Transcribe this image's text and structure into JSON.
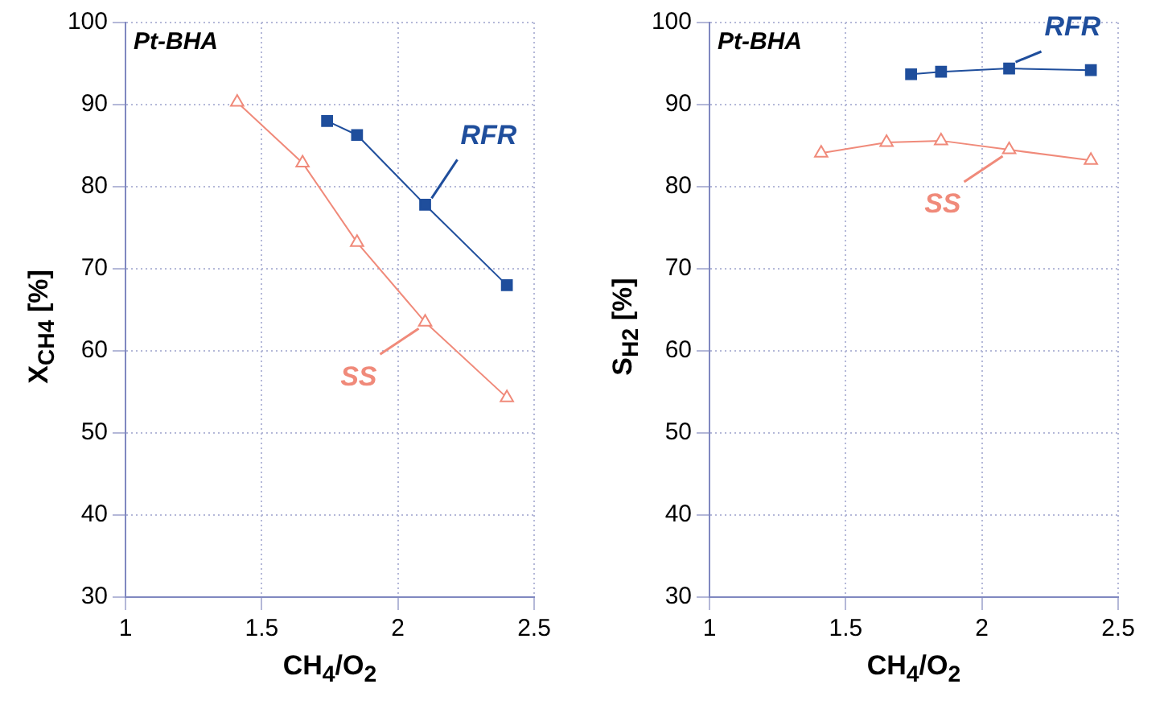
{
  "chart_data": [
    {
      "type": "line",
      "xlabel": "CH$_{4}$/O$_{2}$",
      "ylabel": "X$_{CH4}$  [%]",
      "annotations": [
        "Pt-BHA"
      ],
      "xlim": [
        1,
        2.5
      ],
      "xticks": [
        1,
        1.5,
        2,
        2.5
      ],
      "ylim": [
        30,
        100
      ],
      "yticks": [
        30,
        40,
        50,
        60,
        70,
        80,
        90,
        100
      ],
      "grid": true,
      "line_style": "solid",
      "series": [
        {
          "name": "RFR",
          "color": "#1f4e9c",
          "marker": "square",
          "x": [
            1.74,
            1.85,
            2.1,
            2.4
          ],
          "values": [
            88.0,
            86.3,
            77.8,
            68.0
          ]
        },
        {
          "name": "SS",
          "color": "#f08a7a",
          "marker": "triangle",
          "x": [
            1.41,
            1.65,
            1.85,
            2.1,
            2.4
          ],
          "values": [
            90.3,
            82.9,
            73.2,
            63.5,
            54.3
          ]
        }
      ]
    },
    {
      "type": "line",
      "xlabel": "CH$_{4}$/O$_{2}$",
      "ylabel": "S$_{H2}$  [%]",
      "annotations": [
        "Pt-BHA"
      ],
      "xlim": [
        1,
        2.5
      ],
      "xticks": [
        1,
        1.5,
        2,
        2.5
      ],
      "ylim": [
        30,
        100
      ],
      "yticks": [
        30,
        40,
        50,
        60,
        70,
        80,
        90,
        100
      ],
      "grid": true,
      "line_style": "solid",
      "series": [
        {
          "name": "RFR",
          "color": "#1f4e9c",
          "marker": "square",
          "x": [
            1.74,
            1.85,
            2.1,
            2.4
          ],
          "values": [
            93.7,
            94.0,
            94.4,
            94.2
          ]
        },
        {
          "name": "SS",
          "color": "#f08a7a",
          "marker": "triangle",
          "x": [
            1.41,
            1.65,
            1.85,
            2.1,
            2.4
          ],
          "values": [
            84.1,
            85.4,
            85.6,
            84.5,
            83.2
          ]
        }
      ]
    }
  ]
}
